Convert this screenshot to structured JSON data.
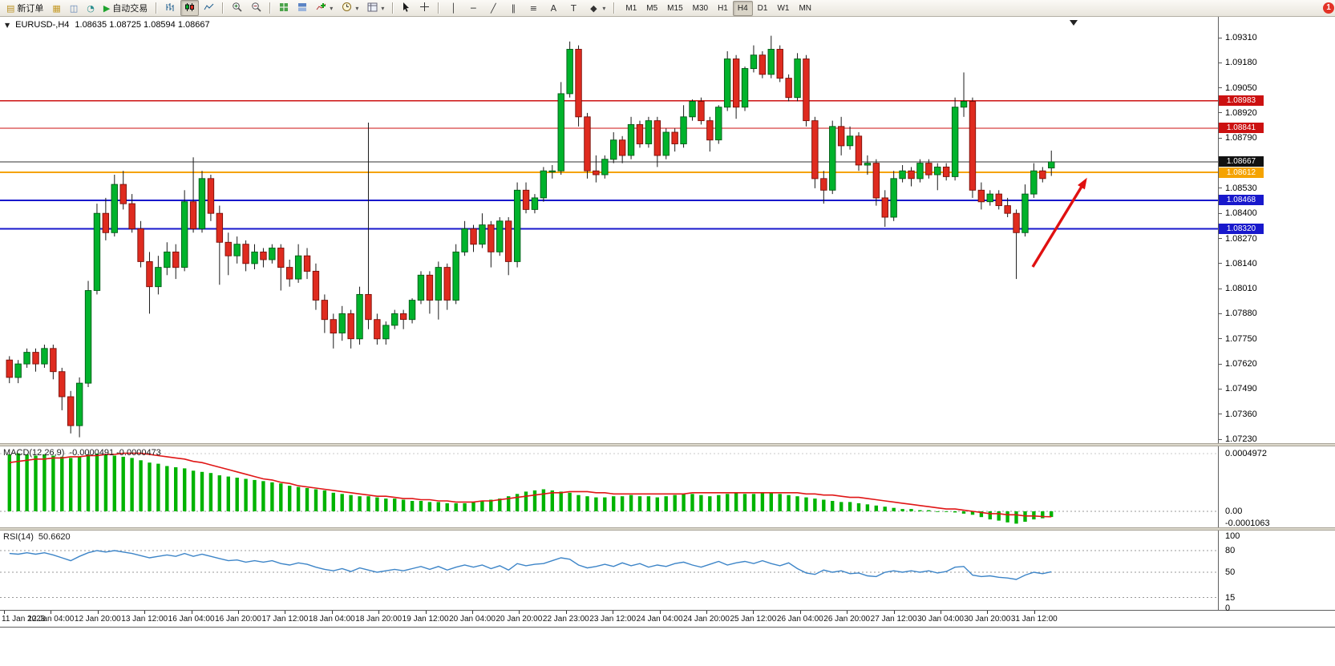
{
  "window": {
    "app": "MetaTrader terminal"
  },
  "toolbar": {
    "new_order_label": "新订单",
    "auto_trading_label": "自动交易",
    "timeframes": [
      "M1",
      "M5",
      "M15",
      "M30",
      "H1",
      "H4",
      "D1",
      "W1",
      "MN"
    ],
    "active_timeframe": "H4",
    "notification_count": "1",
    "icons": {
      "new_order": "▤",
      "market_watch": "▦",
      "navigator": "◫",
      "refresh": "◔",
      "play": "▶",
      "dropdown": "▾"
    },
    "object_tools": {
      "vline": "│",
      "hline": "─",
      "trend": "╱",
      "channel": "∥",
      "fibo": "≡",
      "text": "A",
      "label": "T",
      "shapes": "◆"
    }
  },
  "chart": {
    "collapse_marker": "▼",
    "symbol_period": "EURUSD-,H4",
    "ohlc": "1.08635 1.08725 1.08594 1.08667"
  },
  "price_axis": {
    "labels": [
      "1.09310",
      "1.09180",
      "1.09050",
      "1.08920",
      "1.08790",
      "1.08530",
      "1.08400",
      "1.08270",
      "1.08140",
      "1.08010",
      "1.07880",
      "1.07750",
      "1.07620",
      "1.07490",
      "1.07360",
      "1.07230"
    ]
  },
  "hlines": [
    {
      "price": 1.08983,
      "label": "1.08983",
      "color": "#cc1111",
      "box": "#cc1111",
      "width": 1.3
    },
    {
      "price": 1.08841,
      "label": "1.08841",
      "color": "#cc1111",
      "box": "#cc1111",
      "width": 1.3
    },
    {
      "price": 1.08667,
      "label": "1.08667",
      "color": "#333333",
      "box": "#111111",
      "width": 1
    },
    {
      "price": 1.08612,
      "label": "1.08612",
      "color": "#f5a300",
      "box": "#f5a300",
      "width": 2
    },
    {
      "price": 1.08468,
      "label": "1.08468",
      "color": "#1818cc",
      "box": "#1818cc",
      "width": 2
    },
    {
      "price": 1.0832,
      "label": "1.08320",
      "color": "#1818cc",
      "box": "#1818cc",
      "width": 2
    }
  ],
  "annotation_arrow": {
    "from": [
      1288,
      312
    ],
    "tip": [
      1355,
      202
    ],
    "color": "#e01010"
  },
  "time_axis": {
    "labels": [
      "11 Jan 2023",
      "12 Jan 04:00",
      "12 Jan 20:00",
      "13 Jan 12:00",
      "16 Jan 04:00",
      "16 Jan 20:00",
      "17 Jan 12:00",
      "18 Jan 04:00",
      "18 Jan 20:00",
      "19 Jan 12:00",
      "20 Jan 04:00",
      "20 Jan 20:00",
      "22 Jan 23:00",
      "23 Jan 12:00",
      "24 Jan 04:00",
      "24 Jan 20:00",
      "25 Jan 12:00",
      "26 Jan 04:00",
      "26 Jan 20:00",
      "27 Jan 12:00",
      "30 Jan 04:00",
      "30 Jan 20:00",
      "31 Jan 12:00"
    ]
  },
  "chart_data": {
    "type": "candlestick",
    "symbol": "EURUSD-",
    "timeframe": "H4",
    "ohlc_display": {
      "open": "1.08635",
      "high": "1.08725",
      "low": "1.08594",
      "close": "1.08667"
    },
    "price_range": {
      "top": 1.0931,
      "bottom": 1.0723
    },
    "colors": {
      "up": "#00b32c",
      "down": "#df2b1f",
      "wick": "#1a1a1a",
      "macd_hist": "#00b300",
      "macd_signal": "#e01616",
      "rsi_line": "#3d85c8"
    },
    "candles": [
      [
        1.0764,
        1.0766,
        1.0752,
        1.0755
      ],
      [
        1.0755,
        1.0764,
        1.0752,
        1.0762
      ],
      [
        1.0762,
        1.077,
        1.076,
        1.0768
      ],
      [
        1.0768,
        1.077,
        1.0758,
        1.0762
      ],
      [
        1.0762,
        1.0772,
        1.076,
        1.077
      ],
      [
        1.077,
        1.0772,
        1.0754,
        1.0758
      ],
      [
        1.0758,
        1.076,
        1.0738,
        1.0745
      ],
      [
        1.0745,
        1.0748,
        1.0726,
        1.073
      ],
      [
        1.073,
        1.0755,
        1.0724,
        1.0752
      ],
      [
        1.0752,
        1.0805,
        1.075,
        1.08
      ],
      [
        1.08,
        1.0845,
        1.0798,
        1.084
      ],
      [
        1.084,
        1.0848,
        1.0826,
        1.083
      ],
      [
        1.083,
        1.086,
        1.0828,
        1.0855
      ],
      [
        1.0855,
        1.0862,
        1.0842,
        1.0845
      ],
      [
        1.0845,
        1.085,
        1.083,
        1.0832
      ],
      [
        1.0832,
        1.0836,
        1.0812,
        1.0815
      ],
      [
        1.0815,
        1.082,
        1.0788,
        1.0802
      ],
      [
        1.0802,
        1.0818,
        1.0798,
        1.0812
      ],
      [
        1.0812,
        1.0825,
        1.0808,
        1.082
      ],
      [
        1.082,
        1.0824,
        1.0806,
        1.0812
      ],
      [
        1.0812,
        1.0852,
        1.081,
        1.0846
      ],
      [
        1.0846,
        1.0869,
        1.083,
        1.0832
      ],
      [
        1.0832,
        1.0862,
        1.083,
        1.0858
      ],
      [
        1.0858,
        1.086,
        1.0836,
        1.084
      ],
      [
        1.084,
        1.0844,
        1.0803,
        1.0825
      ],
      [
        1.0825,
        1.083,
        1.0808,
        1.0818
      ],
      [
        1.0818,
        1.0828,
        1.0814,
        1.0824
      ],
      [
        1.0824,
        1.0826,
        1.081,
        1.0814
      ],
      [
        1.0814,
        1.0824,
        1.0811,
        1.082
      ],
      [
        1.082,
        1.0822,
        1.0812,
        1.0816
      ],
      [
        1.0816,
        1.0824,
        1.0814,
        1.0822
      ],
      [
        1.0822,
        1.0824,
        1.08,
        1.0812
      ],
      [
        1.0812,
        1.0816,
        1.0802,
        1.0806
      ],
      [
        1.0806,
        1.0824,
        1.0804,
        1.0818
      ],
      [
        1.0818,
        1.0822,
        1.0806,
        1.081
      ],
      [
        1.081,
        1.0814,
        1.079,
        1.0795
      ],
      [
        1.0795,
        1.0798,
        1.0778,
        1.0785
      ],
      [
        1.0785,
        1.0788,
        1.077,
        1.0778
      ],
      [
        1.0778,
        1.0792,
        1.0774,
        1.0788
      ],
      [
        1.0788,
        1.079,
        1.077,
        1.0775
      ],
      [
        1.0775,
        1.0802,
        1.0772,
        1.0798
      ],
      [
        1.0798,
        1.0887,
        1.078,
        1.0785
      ],
      [
        1.0785,
        1.0788,
        1.0772,
        1.0775
      ],
      [
        1.0775,
        1.0784,
        1.0772,
        1.0782
      ],
      [
        1.0782,
        1.079,
        1.078,
        1.0788
      ],
      [
        1.0788,
        1.079,
        1.078,
        1.0785
      ],
      [
        1.0785,
        1.0796,
        1.0783,
        1.0795
      ],
      [
        1.0795,
        1.081,
        1.0793,
        1.0808
      ],
      [
        1.0808,
        1.081,
        1.0788,
        1.0795
      ],
      [
        1.0795,
        1.0815,
        1.0785,
        1.0812
      ],
      [
        1.0812,
        1.0814,
        1.079,
        1.0795
      ],
      [
        1.0795,
        1.0824,
        1.0793,
        1.082
      ],
      [
        1.082,
        1.0836,
        1.0818,
        1.0832
      ],
      [
        1.0832,
        1.0834,
        1.082,
        1.0824
      ],
      [
        1.0824,
        1.084,
        1.0822,
        1.0834
      ],
      [
        1.0834,
        1.0836,
        1.0812,
        1.082
      ],
      [
        1.082,
        1.0838,
        1.0818,
        1.0836
      ],
      [
        1.0836,
        1.0838,
        1.0808,
        1.0815
      ],
      [
        1.0815,
        1.0856,
        1.0812,
        1.0852
      ],
      [
        1.0852,
        1.0856,
        1.084,
        1.0842
      ],
      [
        1.0842,
        1.085,
        1.084,
        1.0848
      ],
      [
        1.0848,
        1.0864,
        1.0846,
        1.0862
      ],
      [
        1.0862,
        1.0865,
        1.0858,
        1.0862
      ],
      [
        1.0862,
        1.0908,
        1.086,
        1.0902
      ],
      [
        1.0902,
        1.0929,
        1.09,
        1.0925
      ],
      [
        1.0925,
        1.0927,
        1.0885,
        1.089
      ],
      [
        1.089,
        1.0892,
        1.0858,
        1.0862
      ],
      [
        1.0862,
        1.087,
        1.0856,
        1.086
      ],
      [
        1.086,
        1.087,
        1.0858,
        1.0868
      ],
      [
        1.0868,
        1.0882,
        1.0866,
        1.0878
      ],
      [
        1.0878,
        1.088,
        1.0866,
        1.087
      ],
      [
        1.087,
        1.089,
        1.0868,
        1.0886
      ],
      [
        1.0886,
        1.0888,
        1.0874,
        1.0876
      ],
      [
        1.0876,
        1.089,
        1.0874,
        1.0888
      ],
      [
        1.0888,
        1.089,
        1.0864,
        1.087
      ],
      [
        1.087,
        1.0884,
        1.0868,
        1.0882
      ],
      [
        1.0882,
        1.0884,
        1.0872,
        1.0876
      ],
      [
        1.0876,
        1.0896,
        1.0874,
        1.089
      ],
      [
        1.089,
        1.0899,
        1.0888,
        1.0898
      ],
      [
        1.0898,
        1.09,
        1.0886,
        1.0888
      ],
      [
        1.0888,
        1.089,
        1.0872,
        1.0878
      ],
      [
        1.0878,
        1.0896,
        1.0876,
        1.0895
      ],
      [
        1.0895,
        1.0924,
        1.0893,
        1.092
      ],
      [
        1.092,
        1.0922,
        1.0889,
        1.0895
      ],
      [
        1.0895,
        1.0916,
        1.0893,
        1.0915
      ],
      [
        1.0915,
        1.0927,
        1.0913,
        1.0922
      ],
      [
        1.0922,
        1.0924,
        1.091,
        1.0912
      ],
      [
        1.0912,
        1.0932,
        1.091,
        1.0925
      ],
      [
        1.0925,
        1.0927,
        1.0908,
        1.091
      ],
      [
        1.091,
        1.0912,
        1.0898,
        1.09
      ],
      [
        1.09,
        1.0923,
        1.0898,
        1.092
      ],
      [
        1.092,
        1.0922,
        1.0885,
        1.0888
      ],
      [
        1.0888,
        1.089,
        1.0853,
        1.0858
      ],
      [
        1.0858,
        1.0862,
        1.0845,
        1.0852
      ],
      [
        1.0852,
        1.0888,
        1.085,
        1.0885
      ],
      [
        1.0885,
        1.089,
        1.087,
        1.0875
      ],
      [
        1.0875,
        1.0885,
        1.0873,
        1.088
      ],
      [
        1.088,
        1.0882,
        1.0862,
        1.0865
      ],
      [
        1.0865,
        1.087,
        1.086,
        1.0866
      ],
      [
        1.0866,
        1.0868,
        1.0844,
        1.0848
      ],
      [
        1.0848,
        1.0852,
        1.0833,
        1.0838
      ],
      [
        1.0838,
        1.0862,
        1.0836,
        1.0858
      ],
      [
        1.0858,
        1.0865,
        1.0856,
        1.0862
      ],
      [
        1.0862,
        1.0864,
        1.0854,
        1.0858
      ],
      [
        1.0858,
        1.0868,
        1.0856,
        1.0866
      ],
      [
        1.0866,
        1.0868,
        1.0858,
        1.086
      ],
      [
        1.086,
        1.0866,
        1.0852,
        1.0864
      ],
      [
        1.0864,
        1.0866,
        1.0857,
        1.0859
      ],
      [
        1.0859,
        1.09,
        1.0857,
        1.0895
      ],
      [
        1.0895,
        1.0913,
        1.089,
        1.0898
      ],
      [
        1.0898,
        1.09,
        1.0848,
        1.0852
      ],
      [
        1.0852,
        1.0856,
        1.0842,
        1.0846
      ],
      [
        1.0846,
        1.0852,
        1.0844,
        1.085
      ],
      [
        1.085,
        1.0852,
        1.0842,
        1.0844
      ],
      [
        1.0844,
        1.0848,
        1.0838,
        1.084
      ],
      [
        1.084,
        1.0842,
        1.0806,
        1.083
      ],
      [
        1.083,
        1.0855,
        1.0828,
        1.085
      ],
      [
        1.085,
        1.0866,
        1.0848,
        1.0862
      ],
      [
        1.0862,
        1.0864,
        1.0856,
        1.0858
      ],
      [
        1.08635,
        1.08725,
        1.08594,
        1.08667
      ]
    ],
    "indicators": {
      "macd": {
        "label": "MACD(12,26,9)",
        "values": "-0.0000491 -0.0000473",
        "axis_labels": [
          "0.0004972",
          "0.00",
          "-0.0001063"
        ],
        "histogram": [
          0.00049,
          0.0005,
          0.00049,
          0.00048,
          0.00049,
          0.00048,
          0.00047,
          0.00046,
          0.00047,
          0.00049,
          0.0004972,
          0.00049,
          0.00048,
          0.00047,
          0.00046,
          0.00044,
          0.00042,
          0.00041,
          0.00039,
          0.00038,
          0.00037,
          0.00035,
          0.00034,
          0.00033,
          0.00031,
          0.0003,
          0.00029,
          0.00028,
          0.00027,
          0.00026,
          0.00025,
          0.00024,
          0.00022,
          0.00021,
          0.0002,
          0.00019,
          0.00018,
          0.00016,
          0.00015,
          0.00014,
          0.00013,
          0.00013,
          0.00012,
          0.00011,
          0.00011,
          0.0001,
          9e-05,
          9e-05,
          8e-05,
          8e-05,
          7e-05,
          7e-05,
          7e-05,
          8e-05,
          9e-05,
          0.0001,
          0.00011,
          0.00013,
          0.00015,
          0.00017,
          0.00018,
          0.00019,
          0.00018,
          0.00017,
          0.00016,
          0.00014,
          0.00013,
          0.00012,
          0.00012,
          0.00013,
          0.00013,
          0.00014,
          0.00013,
          0.00013,
          0.00012,
          0.00013,
          0.00014,
          0.00015,
          0.00015,
          0.00014,
          0.00013,
          0.00014,
          0.00015,
          0.00016,
          0.00015,
          0.00015,
          0.00016,
          0.00016,
          0.00015,
          0.00014,
          0.00013,
          0.00012,
          0.00011,
          0.0001,
          9e-05,
          8e-05,
          8e-05,
          7e-05,
          6e-05,
          5e-05,
          4e-05,
          3e-05,
          2e-05,
          2e-05,
          1e-05,
          1e-05,
          0,
          0,
          -1e-05,
          -2e-05,
          -3e-05,
          -5e-05,
          -7e-05,
          -8e-05,
          -9.5e-05,
          -0.0001063,
          -9e-05,
          -7e-05,
          -6e-05,
          -4.91e-05
        ],
        "signal": [
          0.00042,
          0.00043,
          0.00044,
          0.00045,
          0.00045,
          0.00046,
          0.00046,
          0.00047,
          0.00047,
          0.00048,
          0.00048,
          0.00049,
          0.00049,
          0.0005,
          0.0005,
          0.0005,
          0.00049,
          0.00048,
          0.00047,
          0.00046,
          0.00045,
          0.00043,
          0.00042,
          0.0004,
          0.00038,
          0.00036,
          0.00034,
          0.00032,
          0.0003,
          0.00028,
          0.00027,
          0.00025,
          0.00024,
          0.00022,
          0.00021,
          0.0002,
          0.00019,
          0.00018,
          0.00017,
          0.00016,
          0.00015,
          0.00014,
          0.00013,
          0.00013,
          0.00012,
          0.00011,
          0.00011,
          0.0001,
          0.0001,
          9e-05,
          9e-05,
          8e-05,
          8e-05,
          8e-05,
          9e-05,
          9e-05,
          0.0001,
          0.00011,
          0.00012,
          0.00013,
          0.00014,
          0.00015,
          0.00016,
          0.00016,
          0.00017,
          0.00017,
          0.00017,
          0.00016,
          0.00016,
          0.00015,
          0.00015,
          0.00015,
          0.00015,
          0.00015,
          0.00015,
          0.00015,
          0.00015,
          0.00015,
          0.00016,
          0.00016,
          0.00016,
          0.00016,
          0.00016,
          0.00016,
          0.00016,
          0.00016,
          0.00016,
          0.00016,
          0.00016,
          0.00016,
          0.00016,
          0.00015,
          0.00015,
          0.00014,
          0.00014,
          0.00013,
          0.00012,
          0.00012,
          0.00011,
          0.0001,
          9e-05,
          8e-05,
          7e-05,
          6e-05,
          5e-05,
          4e-05,
          3e-05,
          2e-05,
          2e-05,
          1e-05,
          0,
          -1e-05,
          -2e-05,
          -2e-05,
          -3e-05,
          -3e-05,
          -4e-05,
          -4e-05,
          -4.5e-05,
          -4.73e-05
        ]
      },
      "rsi": {
        "label": "RSI(14)",
        "value": "50.6620",
        "levels": [
          80,
          50,
          15
        ],
        "axis_labels": [
          "100",
          "80",
          "50",
          "15",
          "0"
        ],
        "values": [
          76,
          75,
          77,
          75,
          77,
          74,
          70,
          66,
          72,
          77,
          80,
          78,
          80,
          78,
          76,
          73,
          70,
          72,
          74,
          72,
          76,
          72,
          75,
          72,
          69,
          66,
          67,
          64,
          66,
          64,
          66,
          62,
          60,
          63,
          61,
          57,
          54,
          52,
          55,
          51,
          56,
          53,
          50,
          52,
          54,
          52,
          55,
          58,
          54,
          58,
          53,
          57,
          60,
          57,
          60,
          55,
          59,
          53,
          62,
          59,
          61,
          62,
          66,
          70,
          68,
          60,
          56,
          58,
          61,
          58,
          63,
          59,
          62,
          57,
          60,
          58,
          62,
          64,
          60,
          57,
          61,
          65,
          60,
          63,
          65,
          62,
          66,
          62,
          59,
          63,
          55,
          49,
          47,
          53,
          50,
          52,
          48,
          49,
          45,
          44,
          50,
          52,
          50,
          52,
          50,
          52,
          49,
          51,
          57,
          58,
          46,
          44,
          45,
          43,
          42,
          40,
          46,
          50,
          48,
          50.66
        ]
      }
    }
  }
}
